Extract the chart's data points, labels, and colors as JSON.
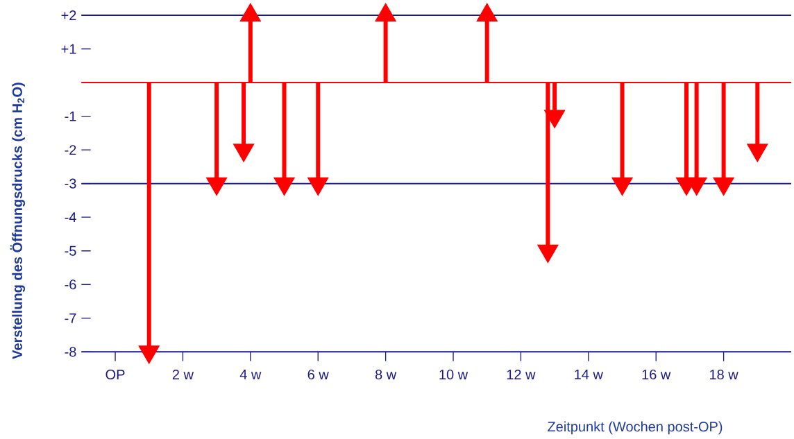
{
  "chart_data": {
    "type": "lollipop",
    "marker": "triangle",
    "ylabel": "Verstellung des Öffnungsdrucks (cm H$_{2}$O)",
    "xlabel": "Zeitpunkt (Wochen post-OP)",
    "x": [
      1,
      3,
      3.8,
      4,
      5,
      6,
      8,
      11,
      12.8,
      13,
      15,
      16.9,
      17.2,
      18,
      19
    ],
    "values": [
      -8,
      -3,
      -2,
      2,
      -3,
      -3,
      2,
      2,
      -5,
      -1,
      -3,
      -3,
      -3,
      -3,
      -2
    ],
    "color": "#ff0000",
    "xlim": [
      -1,
      20
    ],
    "xticks": [
      {
        "value": 0,
        "label": "OP"
      },
      {
        "value": 2,
        "label": "2 w"
      },
      {
        "value": 4,
        "label": "4 w"
      },
      {
        "value": 6,
        "label": "6 w"
      },
      {
        "value": 8,
        "label": "8 w"
      },
      {
        "value": 10,
        "label": "10 w"
      },
      {
        "value": 12,
        "label": "12 w"
      },
      {
        "value": 14,
        "label": "14 w"
      },
      {
        "value": 16,
        "label": "16 w"
      },
      {
        "value": 18,
        "label": "18 w"
      }
    ],
    "ylim": [
      -8,
      2
    ],
    "yticks": [
      {
        "value": 2,
        "label": "+2"
      },
      {
        "value": 1,
        "label": "+1"
      },
      {
        "value": 0,
        "label": null
      },
      -1,
      -2,
      -3,
      -4,
      -5,
      -6,
      -7,
      -8
    ],
    "ref_lines": [
      {
        "axis": "y",
        "value": 2,
        "color": "#1a1a8c"
      },
      {
        "axis": "y",
        "value": 0,
        "color": "#ff0000"
      },
      {
        "axis": "y",
        "value": -3,
        "color": "#1a1a8c"
      }
    ]
  }
}
